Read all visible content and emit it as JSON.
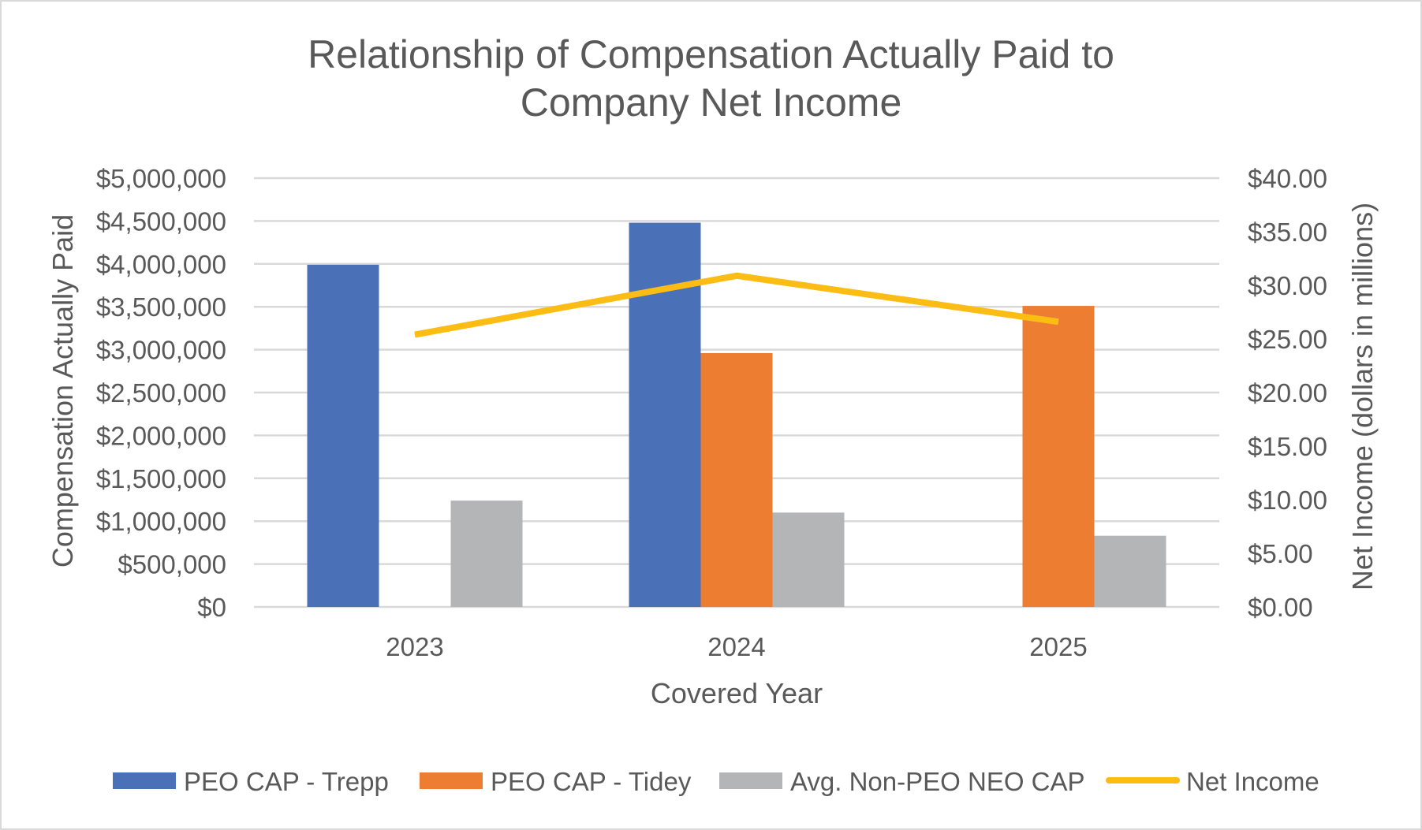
{
  "chart_data": {
    "type": "bar",
    "title": "Relationship of Compensation Actually Paid to Company Net Income",
    "title_lines": [
      "Relationship of Compensation Actually Paid to",
      "Company Net Income"
    ],
    "xlabel": "Covered Year",
    "ylabel": "Compensation Actually Paid",
    "y2label": "Net Income (dollars in millions)",
    "categories": [
      "2023",
      "2024",
      "2025"
    ],
    "ylim": [
      0,
      5000000
    ],
    "y2lim": [
      0,
      40
    ],
    "yticks": [
      "$0",
      "$500,000",
      "$1,000,000",
      "$1,500,000",
      "$2,000,000",
      "$2,500,000",
      "$3,000,000",
      "$3,500,000",
      "$4,000,000",
      "$4,500,000",
      "$5,000,000"
    ],
    "y2ticks": [
      "$0.00",
      "$5.00",
      "$10.00",
      "$15.00",
      "$20.00",
      "$25.00",
      "$30.00",
      "$35.00",
      "$40.00"
    ],
    "grid": true,
    "legend_position": "bottom",
    "series": [
      {
        "name": "PEO CAP - Trepp",
        "kind": "bar",
        "axis": "left",
        "color": "#4a70b7",
        "values": [
          3990000,
          4480000,
          null
        ]
      },
      {
        "name": "PEO CAP - Tidey",
        "kind": "bar",
        "axis": "left",
        "color": "#ed7d31",
        "values": [
          null,
          2960000,
          3510000
        ]
      },
      {
        "name": "Avg. Non-PEO NEO CAP",
        "kind": "bar",
        "axis": "left",
        "color": "#b4b5b7",
        "values": [
          1240000,
          1100000,
          830000
        ]
      },
      {
        "name": "Net Income",
        "kind": "line",
        "axis": "right",
        "color": "#fbbc14",
        "values": [
          25.4,
          30.9,
          26.6
        ]
      }
    ]
  }
}
